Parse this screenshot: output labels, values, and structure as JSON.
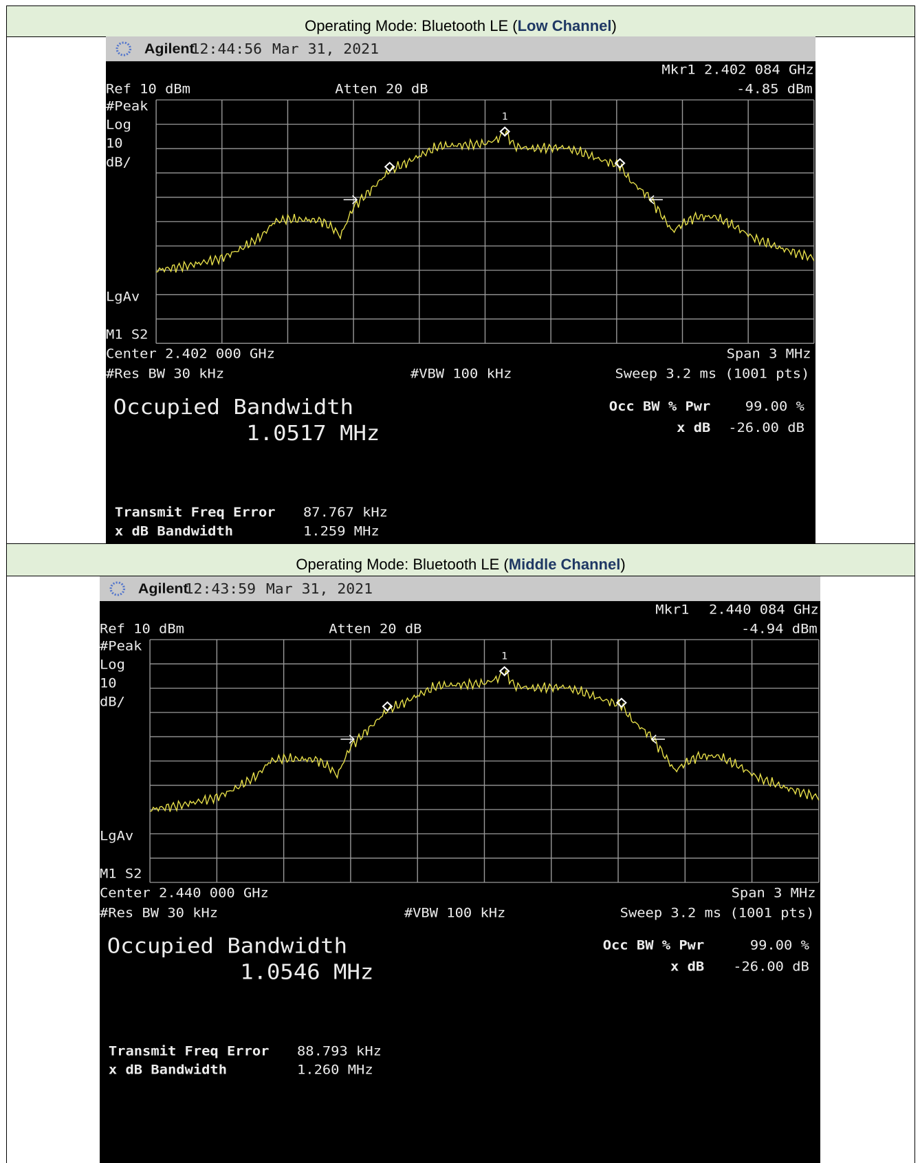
{
  "sections": [
    {
      "mode_prefix": "Operating Mode: Bluetooth LE (",
      "channel": "Low Channel",
      "mode_suffix": ")",
      "screen": {
        "brand": "Agilent",
        "time": "12:44:56",
        "date": "Mar 31, 2021",
        "marker": "Mkr1",
        "marker_freq": "2.402 084 GHz",
        "marker_level": "-4.85 dBm",
        "ref": "Ref 10 dBm",
        "atten": "Atten 20 dB",
        "detector": "#Peak",
        "scale": [
          "Log",
          "10",
          "dB/"
        ],
        "averaging": "LgAv",
        "marker_state": "M1  S2",
        "marker_id": "1",
        "center": "Center 2.402 000 GHz",
        "span": "Span 3 MHz",
        "rbw": "#Res BW 30 kHz",
        "vbw": "#VBW 100 kHz",
        "sweep": "Sweep 3.2 ms (1001 pts)",
        "meas_title": "Occupied Bandwidth",
        "occ_bw": "1.0517 MHz",
        "occ_pwr_label": "Occ BW % Pwr",
        "occ_pwr": "99.00 %",
        "xdb_label": "x dB",
        "xdb": "-26.00 dB",
        "tfe_label": "Transmit Freq Error",
        "tfe": "87.767 kHz",
        "xdb_bw_label": "x dB Bandwidth",
        "xdb_bw": "1.259 MHz"
      }
    },
    {
      "mode_prefix": "Operating Mode: Bluetooth LE (",
      "channel": "Middle Channel",
      "mode_suffix": ")",
      "screen": {
        "brand": "Agilent",
        "time": "12:43:59",
        "date": "Mar 31, 2021",
        "marker": "Mkr1",
        "marker_freq": "2.440 084 GHz",
        "marker_level": "-4.94 dBm",
        "ref": "Ref 10 dBm",
        "atten": "Atten 20 dB",
        "detector": "#Peak",
        "scale": [
          "Log",
          "10",
          "dB/"
        ],
        "averaging": "LgAv",
        "marker_state": "M1  S2",
        "marker_id": "1",
        "center": "Center 2.440 000 GHz",
        "span": "Span 3 MHz",
        "rbw": "#Res BW 30 kHz",
        "vbw": "#VBW 100 kHz",
        "sweep": "Sweep 3.2 ms (1001 pts)",
        "meas_title": "Occupied Bandwidth",
        "occ_bw": "1.0546 MHz",
        "occ_pwr_label": "Occ BW % Pwr",
        "occ_pwr": "99.00 %",
        "xdb_label": "x dB",
        "xdb": "-26.00 dB",
        "tfe_label": "Transmit Freq Error",
        "tfe": "88.793 kHz",
        "xdb_bw_label": "x dB Bandwidth",
        "xdb_bw": "1.260 MHz"
      }
    }
  ]
}
